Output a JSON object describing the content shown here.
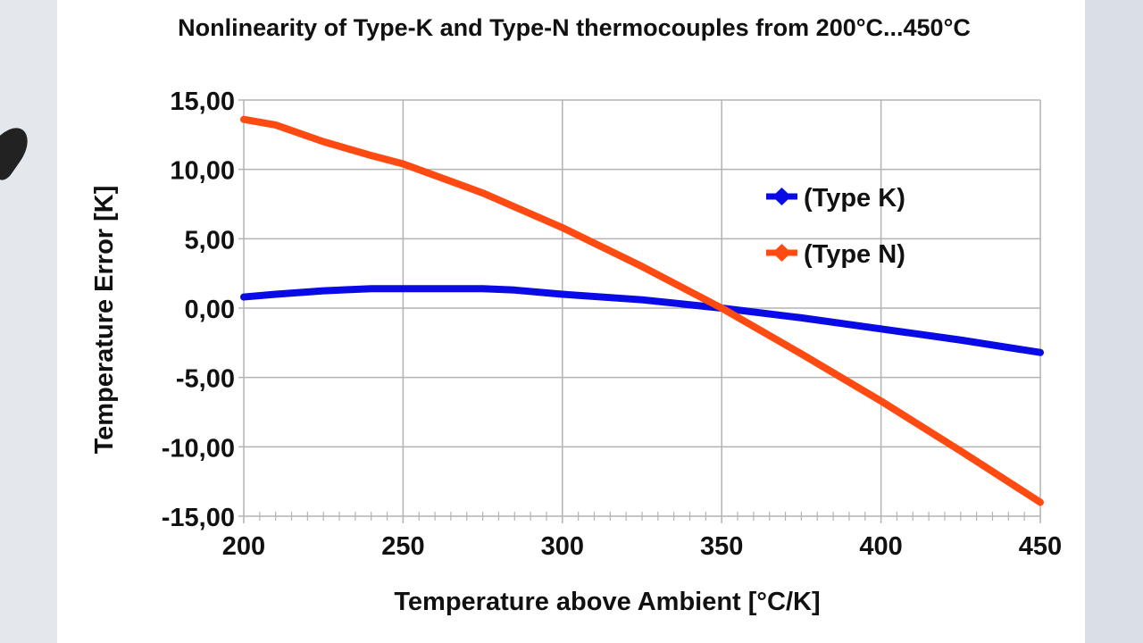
{
  "chart_data": {
    "type": "line",
    "title": "Nonlinearity of Type-K and Type-N thermocouples from 200°C...450°C",
    "xlabel": "Temperature above Ambient [°C/K]",
    "ylabel": "Temperature Error [K]",
    "xlim": [
      200,
      450
    ],
    "ylim": [
      -15,
      15
    ],
    "x_ticks": [
      "200",
      "250",
      "300",
      "350",
      "400",
      "450"
    ],
    "y_ticks": [
      "15,00",
      "10,00",
      "5,00",
      "0,00",
      "-5,00",
      "-10,00",
      "-15,00"
    ],
    "x_minor_step": 5,
    "grid": true,
    "legend_position": "right",
    "x": [
      200,
      210,
      225,
      240,
      250,
      275,
      285,
      300,
      325,
      350,
      375,
      400,
      425,
      450
    ],
    "series": [
      {
        "name": "(Type K)",
        "color": "#0a0ae6",
        "values": [
          0.8,
          1.0,
          1.25,
          1.4,
          1.4,
          1.4,
          1.3,
          1.0,
          0.6,
          0.0,
          -0.7,
          -1.5,
          -2.3,
          -3.2
        ]
      },
      {
        "name": "(Type N)",
        "color": "#ff4a12",
        "values": [
          13.6,
          13.2,
          12.0,
          11.0,
          10.4,
          8.3,
          7.3,
          5.8,
          3.0,
          0.0,
          -3.3,
          -6.7,
          -10.3,
          -14.0
        ]
      }
    ]
  }
}
